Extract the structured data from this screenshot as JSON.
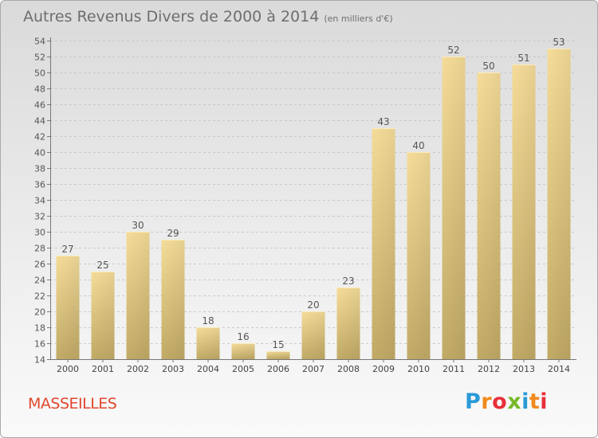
{
  "title": "Autres Revenus Divers de 2000 à 2014",
  "subtitle": "(en milliers d'€)",
  "commune": "MASSEILLES",
  "logo": {
    "p": "P",
    "r": "r",
    "o": "o",
    "x": "x",
    "i": "i",
    "t": "t",
    "i2": "i"
  },
  "colors": {
    "bar_light": "#f5dc99",
    "bar_dark": "#c2aa66",
    "title": "#6e6e6e",
    "commune": "#e0472e"
  },
  "chart_data": {
    "type": "bar",
    "title": "Autres Revenus Divers de 2000 à 2014",
    "subtitle": "(en milliers d'€)",
    "categories": [
      "2000",
      "2001",
      "2002",
      "2003",
      "2004",
      "2005",
      "2006",
      "2007",
      "2008",
      "2009",
      "2010",
      "2011",
      "2012",
      "2013",
      "2014"
    ],
    "values": [
      27,
      25,
      30,
      29,
      18,
      16,
      15,
      20,
      23,
      43,
      40,
      52,
      50,
      51,
      53
    ],
    "ylim": [
      14,
      54
    ],
    "yticks": [
      14,
      16,
      18,
      20,
      22,
      24,
      26,
      28,
      30,
      32,
      34,
      36,
      38,
      40,
      42,
      44,
      46,
      48,
      50,
      52,
      54
    ],
    "grid": true,
    "data_labels": true
  }
}
